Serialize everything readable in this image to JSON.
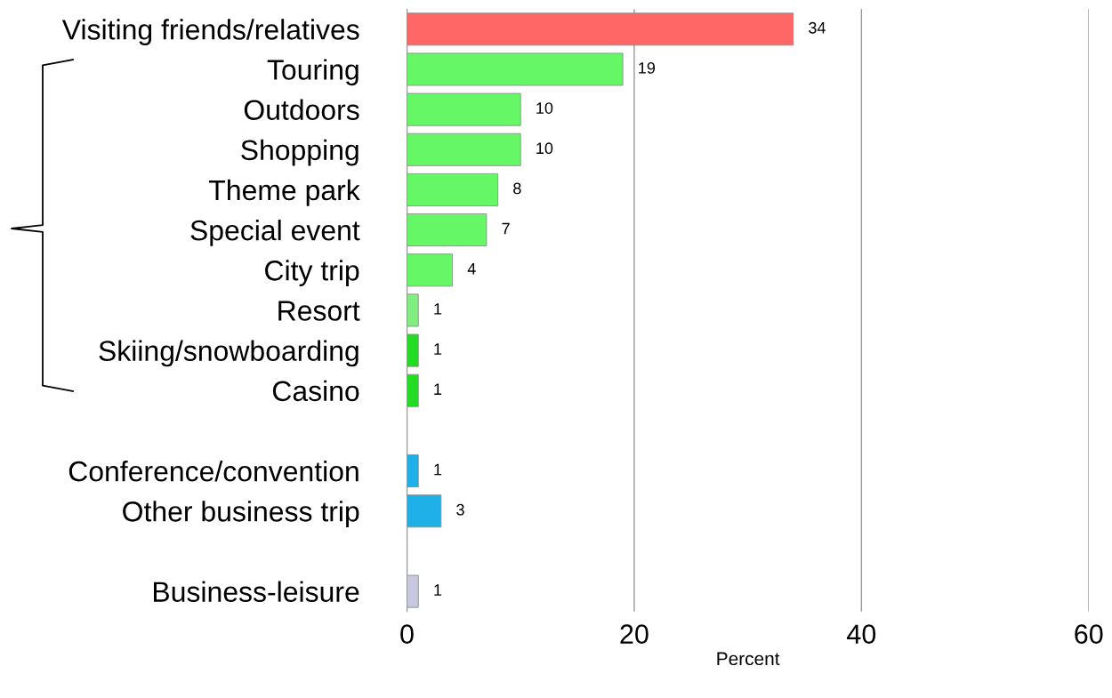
{
  "chart_data": {
    "type": "bar",
    "orientation": "horizontal",
    "xlabel": "Percent",
    "categories": [
      "Visiting friends/relatives",
      "Touring",
      "Outdoors",
      "Shopping",
      "Theme park",
      "Special event",
      "City trip",
      "Resort",
      "Skiing/snowboarding",
      "Casino",
      null,
      "Conference/convention",
      "Other business trip",
      null,
      "Business-leisure"
    ],
    "values": [
      34,
      19,
      10,
      10,
      8,
      7,
      4,
      1,
      1,
      1,
      null,
      1,
      3,
      null,
      1
    ],
    "colors": [
      "#ff6666",
      "#66f766",
      "#66f766",
      "#66f766",
      "#66f766",
      "#66f766",
      "#66f766",
      "#80ee80",
      "#22dd22",
      "#22dd22",
      null,
      "#1fb0e8",
      "#1fb0e8",
      null,
      "#c8c8e0"
    ],
    "xlim": [
      0,
      60
    ],
    "xticks": [
      0,
      20,
      40,
      60
    ],
    "grid": "x",
    "data_labels": true
  }
}
